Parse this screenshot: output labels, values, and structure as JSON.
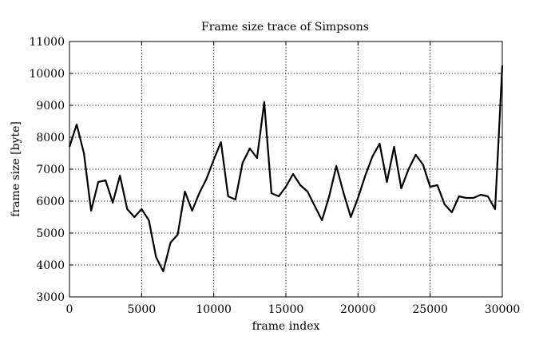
{
  "chart_data": {
    "type": "line",
    "title": "Frame size trace of Simpsons",
    "xlabel": "frame index",
    "ylabel": "frame size [byte]",
    "xlim": [
      0,
      30000
    ],
    "ylim": [
      3000,
      11000
    ],
    "xticks": [
      0,
      5000,
      10000,
      15000,
      20000,
      25000,
      30000
    ],
    "yticks": [
      3000,
      4000,
      5000,
      6000,
      7000,
      8000,
      9000,
      10000,
      11000
    ],
    "xtick_labels": [
      "0",
      "5000",
      "10000",
      "15000",
      "20000",
      "25000",
      "30000"
    ],
    "ytick_labels": [
      "3000",
      "4000",
      "5000",
      "6000",
      "7000",
      "8000",
      "9000",
      "10000",
      "11000"
    ],
    "grid": true,
    "grid_style": "dotted",
    "line_color": "#000000",
    "series": [
      {
        "x": [
          0,
          500,
          1000,
          1500,
          2000,
          2500,
          3000,
          3500,
          4000,
          4500,
          5000,
          5500,
          6000,
          6500,
          7000,
          7500,
          8000,
          8500,
          9000,
          9500,
          10000,
          10500,
          11000,
          11500,
          12000,
          12500,
          13000,
          13500,
          14000,
          14500,
          15000,
          15500,
          16000,
          16500,
          17000,
          17500,
          18000,
          18500,
          19000,
          19500,
          20000,
          20500,
          21000,
          21500,
          22000,
          22500,
          23000,
          23500,
          24000,
          24500,
          25000,
          25500,
          26000,
          26500,
          27000,
          27500,
          28000,
          28500,
          29000,
          29500,
          30000
        ],
        "values": [
          7700,
          8400,
          7500,
          5700,
          6600,
          6650,
          5950,
          6800,
          5750,
          5500,
          5750,
          5400,
          4250,
          3800,
          4700,
          4950,
          6300,
          5700,
          6250,
          6700,
          7300,
          7850,
          6150,
          6050,
          7200,
          7650,
          7350,
          9100,
          6250,
          6150,
          6450,
          6850,
          6500,
          6300,
          5850,
          5400,
          6150,
          7100,
          6250,
          5500,
          6100,
          6800,
          7400,
          7800,
          6600,
          7700,
          6400,
          7000,
          7450,
          7150,
          6450,
          6500,
          5900,
          5650,
          6150,
          6100,
          6100,
          6200,
          6150,
          5750,
          10250
        ]
      }
    ]
  }
}
